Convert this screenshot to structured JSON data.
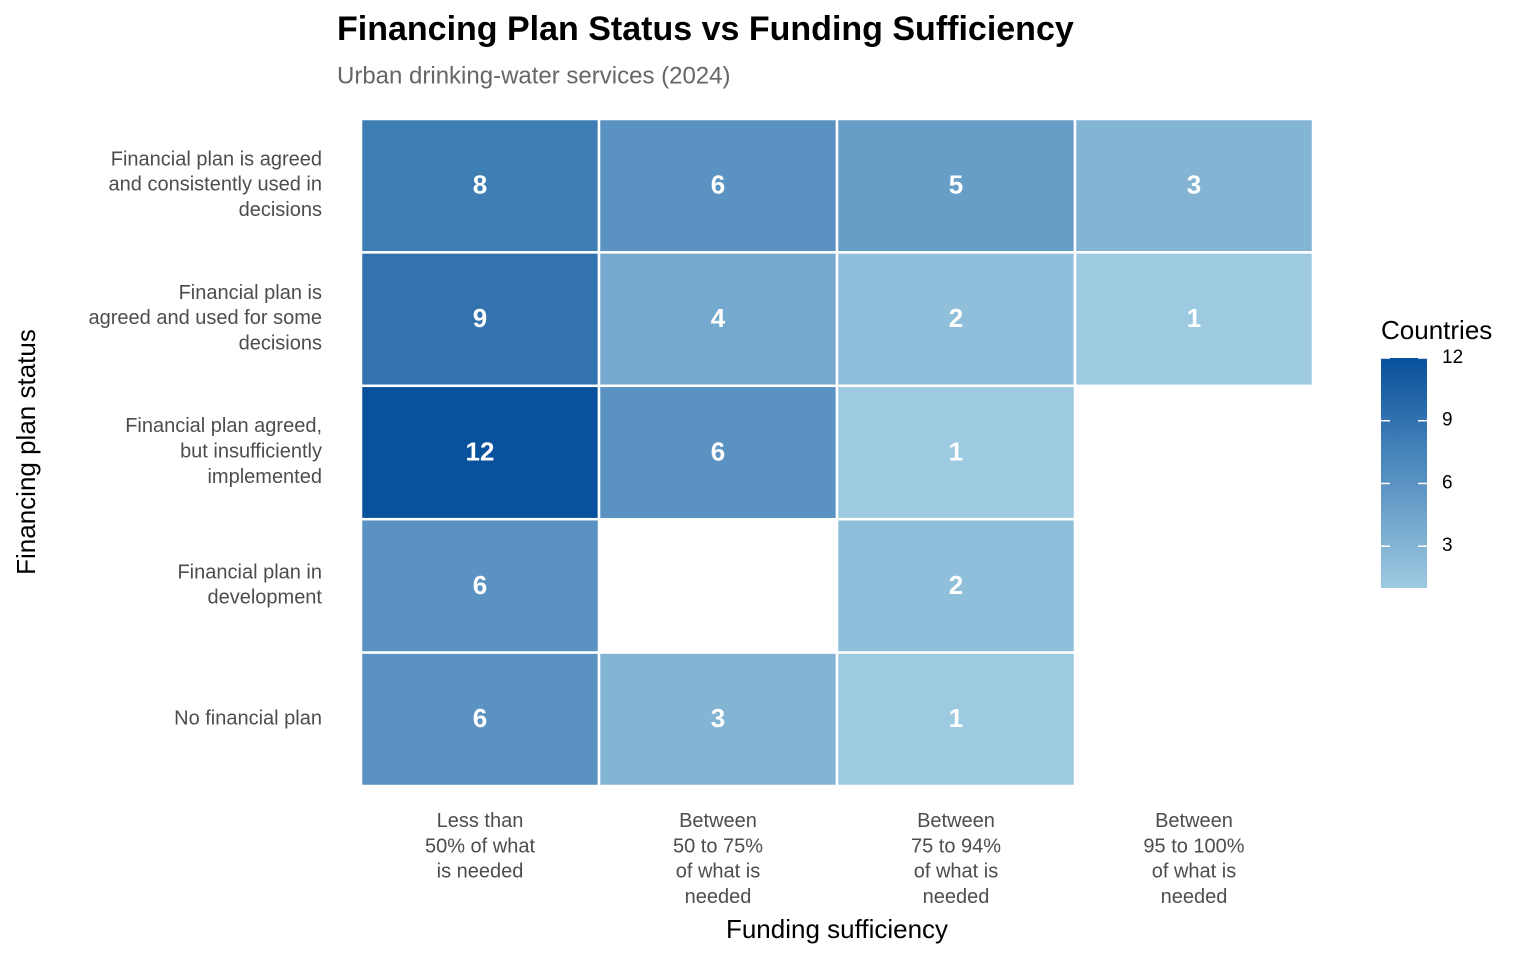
{
  "chart_data": {
    "type": "heatmap",
    "title": "Financing Plan Status vs Funding Sufficiency",
    "subtitle": "Urban drinking-water services (2024)",
    "x_label": "Funding sufficiency",
    "y_label": "Financing plan status",
    "categories": [
      "Less than\n50% of what\nis needed",
      "Between\n50 to 75%\nof what is\nneeded",
      "Between\n75 to 94%\nof what is\nneeded",
      "Between\n95 to 100%\nof what is\nneeded"
    ],
    "rows": [
      "Financial plan is agreed\nand consistently used in\ndecisions",
      "Financial plan is\nagreed and used for some\ndecisions",
      "Financial plan agreed,\nbut insufficiently\nimplemented",
      "Financial plan in\ndevelopment",
      "No financial plan"
    ],
    "values": [
      [
        8,
        6,
        5,
        3
      ],
      [
        9,
        4,
        2,
        1
      ],
      [
        12,
        6,
        1,
        null
      ],
      [
        6,
        null,
        2,
        null
      ],
      [
        6,
        3,
        1,
        null
      ]
    ],
    "legend_title": "Countries",
    "clim": [
      1,
      12
    ],
    "cticks": [
      3,
      6,
      9,
      12
    ],
    "color_low": "#9ecae1",
    "color_high": "#08519c",
    "label_color": "#ffffff"
  }
}
